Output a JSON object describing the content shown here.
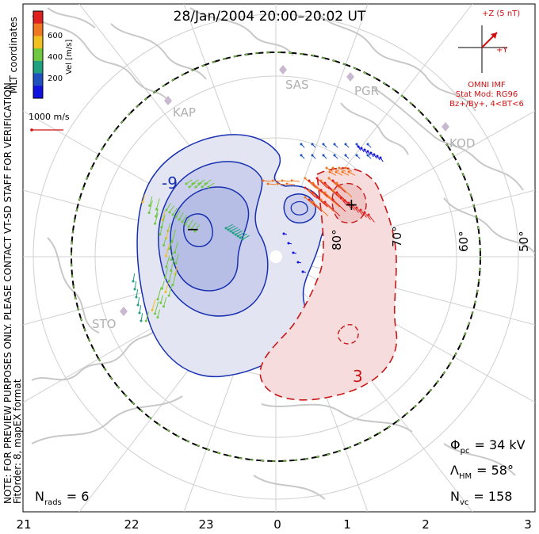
{
  "title": "28/Jan/2004 20:00–20:02 UT",
  "colorbar": {
    "label": "Vel [m/s]",
    "ticks": [
      "600",
      "400",
      "200"
    ],
    "colors": [
      "#e02020",
      "#f07820",
      "#f0c020",
      "#70c840",
      "#20a080",
      "#2050c0",
      "#1010e0"
    ]
  },
  "side_labels": {
    "coords": "MLT coordinates",
    "note": "NOTE: FOR PREVIEW PURPOSES ONLY. PLEASE CONTACT VT-SD STAFF FOR VERIFICATION.",
    "fit": "FitOrder: 8, mapEX format"
  },
  "scale_label": "1000 m/s",
  "imf": {
    "z_label": "+Z (5 nT)",
    "y_label": "+Y",
    "source": "OMNI IMF",
    "model": "Stat Mod: RG96",
    "condition": "Bz+/By+, 4<BT<6"
  },
  "stations": [
    "SAS",
    "PGR",
    "KAP",
    "KOD",
    "STO"
  ],
  "lat_labels": [
    "80°",
    "70°",
    "60°",
    "50°"
  ],
  "contours": {
    "neg_label": "-9",
    "pos_label": "3",
    "neg_marker": "−",
    "pos_marker": "+"
  },
  "stats": {
    "phi_pc": {
      "sym": "Φ",
      "sub": "pc",
      "val": "= 34 kV"
    },
    "lambda_hm": {
      "sym": "Λ",
      "sub": "HM",
      "val": "= 58°"
    },
    "n_vc": {
      "sym": "N",
      "sub": "vc",
      "val": "= 158"
    },
    "n_rads": {
      "sym": "N",
      "sub": "rads",
      "val": "= 6"
    }
  },
  "mlt_axis": [
    "21",
    "22",
    "23",
    "0",
    "1",
    "2",
    "3"
  ]
}
